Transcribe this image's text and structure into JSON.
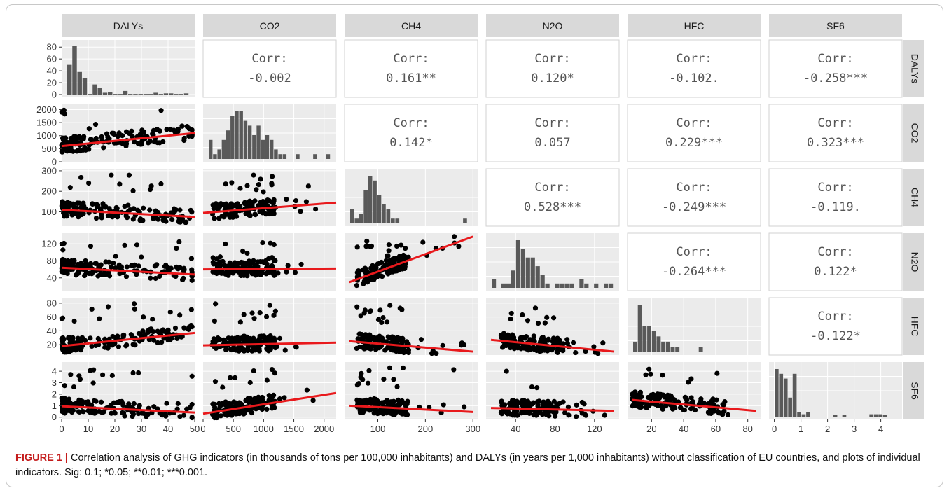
{
  "variables": [
    "DALYs",
    "CO2",
    "CH4",
    "N2O",
    "HFC",
    "SF6"
  ],
  "corr_label": "Corr:",
  "correlations": {
    "CO2_DALYs": "-0.002",
    "CH4_DALYs": "0.161**",
    "N2O_DALYs": "0.120*",
    "HFC_DALYs": "-0.102.",
    "SF6_DALYs": "-0.258***",
    "CH4_CO2": "0.142*",
    "N2O_CO2": "0.057",
    "HFC_CO2": "0.229***",
    "SF6_CO2": "0.323***",
    "N2O_CH4": "0.528***",
    "HFC_CH4": "-0.249***",
    "SF6_CH4": "-0.119.",
    "HFC_N2O": "-0.264***",
    "SF6_N2O": "0.122*",
    "SF6_HFC": "-0.122*"
  },
  "caption": {
    "figure_label": "FIGURE 1 |",
    "text": "Correlation analysis of GHG indicators (in thousands of tons per 100,000 inhabitants) and DALYs (in years per 1,000 inhabitants) without classification of EU countries, and plots of individual indicators. Sig: 0.1; *0.05; **0.01; ***0.001."
  },
  "colors": {
    "panel_bg": "#ebebeb",
    "strip_bg": "#d9d9d9",
    "grid": "#ffffff",
    "point": "#000000",
    "fit_line": "#e8191c",
    "bar": "#595959"
  },
  "chart_data": {
    "type": "scatter",
    "title": "",
    "axes": {
      "DALYs": {
        "range": [
          0,
          50
        ],
        "x_ticks": [
          0,
          10,
          20,
          30,
          40,
          50
        ],
        "y_ticks": [
          0,
          20,
          40,
          60,
          80
        ],
        "y_hist_range": [
          0,
          85
        ]
      },
      "CO2": {
        "range": [
          0,
          2200
        ],
        "ticks": [
          0,
          500,
          1000,
          1500,
          2000
        ]
      },
      "CH4": {
        "range": [
          30,
          310
        ],
        "ticks": [
          100,
          200,
          300
        ]
      },
      "N2O": {
        "range": [
          10,
          145
        ],
        "ticks": [
          40,
          80,
          120
        ]
      },
      "HFC": {
        "range": [
          5,
          88
        ],
        "ticks": [
          20,
          40,
          60,
          80
        ]
      },
      "SF6": {
        "range": [
          -0.2,
          4.8
        ],
        "ticks": [
          0,
          1,
          2,
          3,
          4
        ]
      }
    },
    "histograms": {
      "DALYs": [
        50,
        82,
        38,
        28,
        1,
        17,
        11,
        3,
        4,
        1,
        1,
        6,
        1,
        1,
        1,
        1,
        1,
        3,
        1,
        2,
        2,
        1,
        1,
        2
      ],
      "CO2": [
        4,
        1,
        2,
        4,
        6,
        9,
        10,
        10,
        8,
        7,
        5,
        7,
        4,
        5,
        4,
        2,
        1,
        1,
        0,
        0,
        1,
        0,
        0,
        0,
        1,
        0,
        0,
        1
      ],
      "CH4": [
        3,
        1,
        2,
        7,
        10,
        9,
        6,
        4,
        3,
        1,
        1,
        0,
        0,
        0,
        0,
        0,
        0,
        0,
        0,
        0,
        0,
        0,
        0,
        0,
        0,
        1,
        0
      ],
      "N2O": [
        2,
        0,
        1,
        1,
        4,
        11,
        9,
        7,
        7,
        5,
        3,
        1,
        0,
        1,
        1,
        1,
        1,
        0,
        2,
        1,
        0,
        1,
        0,
        1,
        1
      ],
      "HFC": [
        2,
        9,
        5,
        5,
        4,
        3,
        2,
        2,
        1,
        1,
        0,
        0,
        0,
        0,
        1,
        0,
        0,
        0,
        0,
        0,
        0,
        0,
        0,
        0,
        0,
        0
      ],
      "SF6": [
        10,
        9,
        8,
        4,
        9,
        1,
        0.5,
        1,
        0,
        0,
        0,
        0,
        0,
        0.3,
        0,
        0.3,
        0,
        0,
        0,
        0,
        0,
        0.5,
        0.5,
        0.5,
        0.3,
        0,
        0
      ]
    },
    "fit_lines": {
      "CO2_DALYs": [
        [
          0,
          600
        ],
        [
          50,
          1100
        ]
      ],
      "CH4_DALYs": [
        [
          0,
          110
        ],
        [
          50,
          75
        ]
      ],
      "N2O_DALYs": [
        [
          0,
          64
        ],
        [
          50,
          48
        ]
      ],
      "HFC_DALYs": [
        [
          0,
          18
        ],
        [
          50,
          37
        ]
      ],
      "SF6_DALYs": [
        [
          0,
          0.95
        ],
        [
          50,
          0.4
        ]
      ],
      "CH4_CO2": [
        [
          0,
          95
        ],
        [
          2200,
          145
        ]
      ],
      "N2O_CO2": [
        [
          0,
          60
        ],
        [
          2200,
          62
        ]
      ],
      "HFC_CO2": [
        [
          0,
          19
        ],
        [
          2200,
          23
        ]
      ],
      "SF6_CO2": [
        [
          0,
          0.3
        ],
        [
          2200,
          2.1
        ]
      ],
      "N2O_CH4": [
        [
          40,
          30
        ],
        [
          300,
          137
        ]
      ],
      "HFC_CH4": [
        [
          40,
          25
        ],
        [
          300,
          10
        ]
      ],
      "SF6_CH4": [
        [
          40,
          1.0
        ],
        [
          300,
          0.45
        ]
      ],
      "HFC_N2O": [
        [
          15,
          27
        ],
        [
          140,
          10
        ]
      ],
      "SF6_N2O": [
        [
          15,
          0.8
        ],
        [
          140,
          0.55
        ]
      ],
      "SF6_HFC": [
        [
          8,
          1.5
        ],
        [
          85,
          0.55
        ]
      ]
    }
  }
}
